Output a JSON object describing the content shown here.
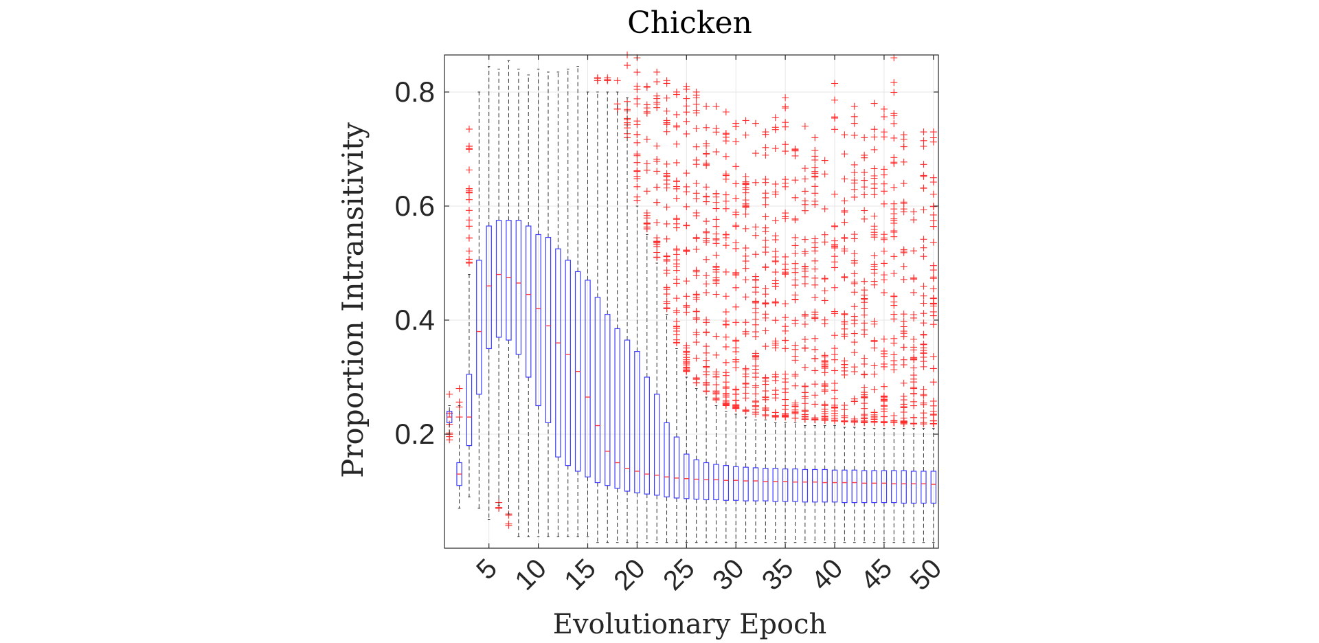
{
  "chart_data": {
    "type": "boxplot",
    "title": "Chicken",
    "xlabel": "Evolutionary Epoch",
    "ylabel": "Proportion Intransitivity",
    "xlim": [
      0.5,
      50.5
    ],
    "ylim": [
      0.0,
      0.865
    ],
    "yticks": [
      0.2,
      0.4,
      0.6,
      0.8
    ],
    "ytick_labels": [
      "0.2",
      "0.4",
      "0.6",
      "0.8"
    ],
    "xticks": [
      5,
      10,
      15,
      20,
      25,
      30,
      35,
      40,
      45,
      50
    ],
    "xtick_labels": [
      "5",
      "10",
      "15",
      "20",
      "25",
      "30",
      "35",
      "40",
      "45",
      "50"
    ],
    "grid": true,
    "colors": {
      "box": "#3b3bff",
      "median": "#ff3b3b",
      "whisker": "#333333",
      "outlier": "#ff2a2a"
    },
    "epochs": [
      1,
      2,
      3,
      4,
      5,
      6,
      7,
      8,
      9,
      10,
      11,
      12,
      13,
      14,
      15,
      16,
      17,
      18,
      19,
      20,
      21,
      22,
      23,
      24,
      25,
      26,
      27,
      28,
      29,
      30,
      31,
      32,
      33,
      34,
      35,
      36,
      37,
      38,
      39,
      40,
      41,
      42,
      43,
      44,
      45,
      46,
      47,
      48,
      49,
      50
    ],
    "median": [
      0.23,
      0.13,
      0.23,
      0.38,
      0.46,
      0.48,
      0.475,
      0.465,
      0.445,
      0.42,
      0.39,
      0.36,
      0.34,
      0.31,
      0.265,
      0.215,
      0.17,
      0.15,
      0.14,
      0.135,
      0.13,
      0.128,
      0.125,
      0.123,
      0.122,
      0.121,
      0.12,
      0.12,
      0.119,
      0.119,
      0.118,
      0.118,
      0.117,
      0.117,
      0.117,
      0.116,
      0.116,
      0.116,
      0.115,
      0.115,
      0.115,
      0.115,
      0.114,
      0.114,
      0.114,
      0.113,
      0.113,
      0.113,
      0.113,
      0.112
    ],
    "q1": [
      0.22,
      0.11,
      0.18,
      0.27,
      0.35,
      0.37,
      0.365,
      0.34,
      0.3,
      0.25,
      0.22,
      0.16,
      0.145,
      0.135,
      0.125,
      0.115,
      0.11,
      0.105,
      0.1,
      0.097,
      0.095,
      0.093,
      0.09,
      0.088,
      0.087,
      0.086,
      0.085,
      0.085,
      0.084,
      0.084,
      0.083,
      0.083,
      0.083,
      0.082,
      0.082,
      0.082,
      0.081,
      0.081,
      0.081,
      0.081,
      0.08,
      0.08,
      0.08,
      0.08,
      0.08,
      0.08,
      0.079,
      0.079,
      0.079,
      0.079
    ],
    "q3": [
      0.24,
      0.15,
      0.305,
      0.505,
      0.565,
      0.575,
      0.575,
      0.575,
      0.565,
      0.55,
      0.545,
      0.525,
      0.505,
      0.485,
      0.47,
      0.44,
      0.41,
      0.385,
      0.365,
      0.345,
      0.3,
      0.27,
      0.22,
      0.195,
      0.165,
      0.155,
      0.15,
      0.147,
      0.145,
      0.143,
      0.142,
      0.141,
      0.14,
      0.14,
      0.139,
      0.139,
      0.138,
      0.138,
      0.138,
      0.137,
      0.137,
      0.137,
      0.136,
      0.136,
      0.136,
      0.136,
      0.136,
      0.135,
      0.135,
      0.135
    ],
    "whisker_low": [
      0.2,
      0.07,
      0.09,
      0.07,
      0.05,
      0.075,
      0.06,
      0.02,
      0.02,
      0.02,
      0.02,
      0.02,
      0.02,
      0.02,
      0.02,
      0.01,
      0.01,
      0.01,
      0.01,
      0.01,
      0.01,
      0.01,
      0.01,
      0.01,
      0.01,
      0.01,
      0.01,
      0.01,
      0.01,
      0.01,
      0.01,
      0.01,
      0.01,
      0.01,
      0.01,
      0.01,
      0.01,
      0.01,
      0.01,
      0.01,
      0.01,
      0.01,
      0.01,
      0.01,
      0.01,
      0.01,
      0.01,
      0.01,
      0.01,
      0.01
    ],
    "whisker_high": [
      0.25,
      0.25,
      0.48,
      0.8,
      0.845,
      0.84,
      0.855,
      0.84,
      0.83,
      0.84,
      0.835,
      0.835,
      0.84,
      0.845,
      0.8,
      0.8,
      0.8,
      0.8,
      0.79,
      0.6,
      0.55,
      0.5,
      0.41,
      0.35,
      0.3,
      0.28,
      0.265,
      0.25,
      0.24,
      0.235,
      0.23,
      0.225,
      0.225,
      0.22,
      0.22,
      0.22,
      0.215,
      0.215,
      0.215,
      0.215,
      0.212,
      0.212,
      0.21,
      0.21,
      0.21,
      0.21,
      0.21,
      0.21,
      0.21,
      0.21
    ],
    "outlier_low": [
      0.19,
      0.23,
      0.5,
      0.0,
      0.0,
      0.07,
      0.04,
      0.0,
      0.0,
      0.0,
      0.0,
      0.0,
      0.0,
      0.0,
      0.0,
      0.82,
      0.82,
      0.77,
      0.72,
      0.61,
      0.56,
      0.51,
      0.42,
      0.36,
      0.31,
      0.29,
      0.275,
      0.26,
      0.25,
      0.245,
      0.24,
      0.235,
      0.232,
      0.23,
      0.23,
      0.228,
      0.226,
      0.225,
      0.224,
      0.223,
      0.222,
      0.221,
      0.22,
      0.22,
      0.22,
      0.22,
      0.218,
      0.218,
      0.218,
      0.218
    ],
    "outlier_high": [
      0.27,
      0.28,
      0.735,
      0.0,
      0.0,
      0.08,
      0.06,
      0.0,
      0.0,
      0.0,
      0.0,
      0.0,
      0.0,
      0.0,
      0.0,
      0.825,
      0.825,
      0.82,
      0.865,
      0.86,
      0.81,
      0.835,
      0.82,
      0.8,
      0.81,
      0.8,
      0.775,
      0.775,
      0.765,
      0.745,
      0.75,
      0.745,
      0.73,
      0.755,
      0.79,
      0.7,
      0.74,
      0.72,
      0.68,
      0.815,
      0.725,
      0.775,
      0.72,
      0.78,
      0.77,
      0.86,
      0.725,
      0.59,
      0.73,
      0.73
    ]
  }
}
